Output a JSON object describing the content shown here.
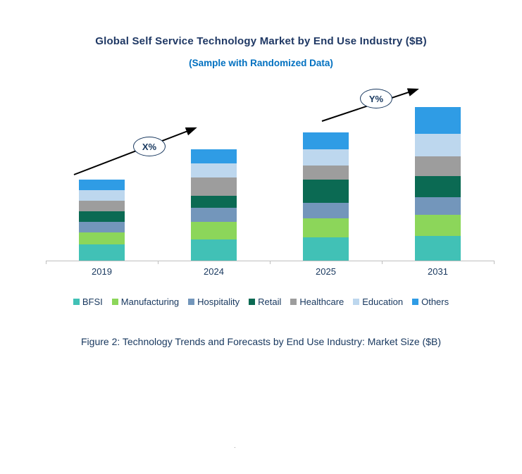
{
  "colors": {
    "title": "#1F3864",
    "subtitle": "#0070C0",
    "text": "#17375E",
    "axis": "#BFBFBF",
    "arrow": "#000000"
  },
  "caption": "Figure 2: Technology Trends and Forecasts by End Use Industry:  Market Size ($B)",
  "stray_dot": ".",
  "chart_data": {
    "type": "bar",
    "stacked": true,
    "title": "Global Self Service Technology Market by End Use Industry ($B)",
    "subtitle": "(Sample with Randomized Data)",
    "xlabel": "",
    "ylabel": "",
    "ylim": [
      0,
      250
    ],
    "grid": false,
    "legend_position": "bottom",
    "categories": [
      "2019",
      "2024",
      "2025",
      "2031"
    ],
    "series": [
      {
        "name": "BFSI",
        "color": "#41C1B6",
        "values": [
          23,
          30,
          33,
          35
        ]
      },
      {
        "name": "Manufacturing",
        "color": "#8CD65A",
        "values": [
          17,
          25,
          27,
          30
        ]
      },
      {
        "name": "Hospitality",
        "color": "#7396BB",
        "values": [
          15,
          20,
          22,
          25
        ]
      },
      {
        "name": "Retail",
        "color": "#0B6A53",
        "values": [
          15,
          17,
          33,
          30
        ]
      },
      {
        "name": "Healthcare",
        "color": "#9D9D9D",
        "values": [
          15,
          26,
          20,
          28
        ]
      },
      {
        "name": "Education",
        "color": "#BDD7EE",
        "values": [
          15,
          20,
          23,
          32
        ]
      },
      {
        "name": "Others",
        "color": "#2F9CE5",
        "values": [
          15,
          20,
          24,
          38
        ]
      }
    ],
    "annotations": [
      {
        "label": "X%",
        "between": [
          "2019",
          "2024"
        ]
      },
      {
        "label": "Y%",
        "between": [
          "2025",
          "2031"
        ]
      }
    ]
  }
}
